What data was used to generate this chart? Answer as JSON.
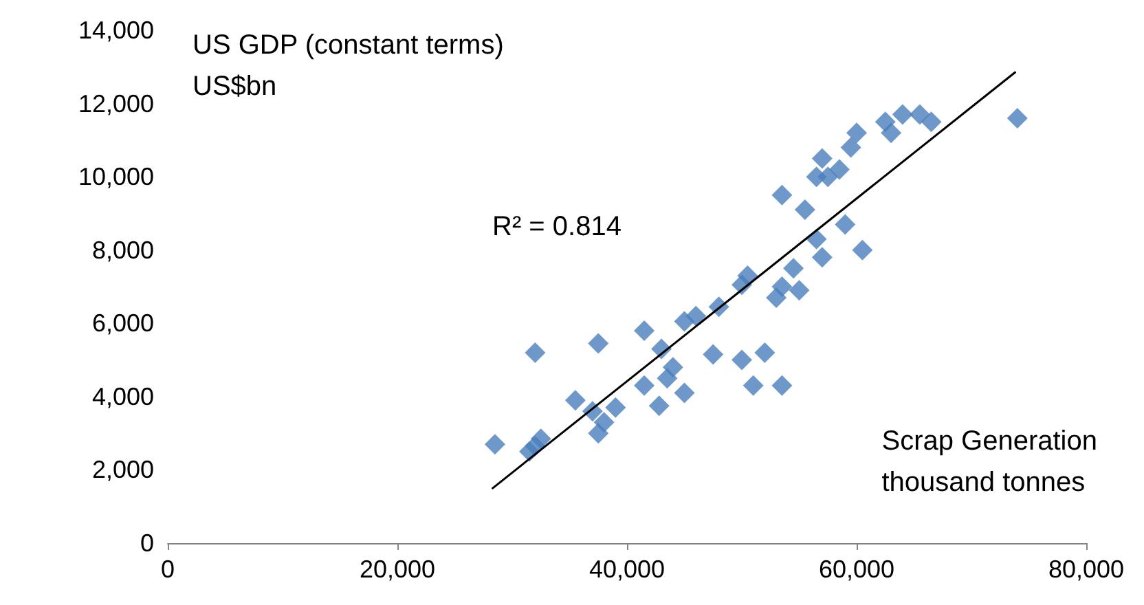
{
  "chart_data": {
    "type": "scatter",
    "xlabel": "Scrap Generation\nthousand tonnes",
    "ylabel": "US GDP (constant terms)\nUS$bn",
    "annotations": [
      "R² = 0.814"
    ],
    "xlim": [
      0,
      80000
    ],
    "xticks": [
      {
        "value": 0,
        "label": "0"
      },
      {
        "value": 20000,
        "label": "20,000"
      },
      {
        "value": 40000,
        "label": "40,000"
      },
      {
        "value": 60000,
        "label": "60,000"
      },
      {
        "value": 80000,
        "label": "80,000"
      }
    ],
    "ylim": [
      0,
      14000
    ],
    "yticks": [
      {
        "value": 0,
        "label": "0"
      },
      {
        "value": 2000,
        "label": "2,000"
      },
      {
        "value": 4000,
        "label": "4,000"
      },
      {
        "value": 6000,
        "label": "6,000"
      },
      {
        "value": 8000,
        "label": "8,000"
      },
      {
        "value": 10000,
        "label": "10,000"
      },
      {
        "value": 12000,
        "label": "12,000"
      },
      {
        "value": 14000,
        "label": "14,000"
      }
    ],
    "grid": false,
    "series": [
      {
        "color": "#4a7ebb",
        "marker": "diamond",
        "x": [
          28500,
          31500,
          32000,
          32500,
          32000,
          35500,
          37000,
          37500,
          38000,
          39000,
          37500,
          41500,
          41500,
          43000,
          42800,
          43500,
          44000,
          45000,
          45000,
          46000,
          47500,
          48000,
          50000,
          50500,
          50000,
          51000,
          52000,
          53500,
          53000,
          53500,
          54500,
          55000,
          53500,
          55500,
          56500,
          57000,
          56500,
          57000,
          57500,
          58500,
          59000,
          60500,
          59500,
          60000,
          62500,
          63000,
          64000,
          65500,
          66500,
          74000
        ],
        "values": [
          2700,
          2500,
          2650,
          2850,
          5200,
          3900,
          3600,
          3000,
          3300,
          3700,
          5450,
          5800,
          4300,
          5300,
          3750,
          4500,
          4800,
          4100,
          6050,
          6200,
          5150,
          6450,
          7050,
          7300,
          5000,
          4300,
          5200,
          4300,
          6700,
          7000,
          7500,
          6900,
          9500,
          9100,
          8300,
          7800,
          10000,
          10500,
          10000,
          10200,
          8700,
          8000,
          10800,
          11200,
          11500,
          11200,
          11700,
          11700,
          11500,
          11600
        ]
      },
      {
        "type": "line",
        "color": "#000000",
        "marker": "none",
        "line_style": "solid",
        "x": [
          28300,
          73800
        ],
        "values": [
          1500,
          12850
        ]
      }
    ]
  }
}
